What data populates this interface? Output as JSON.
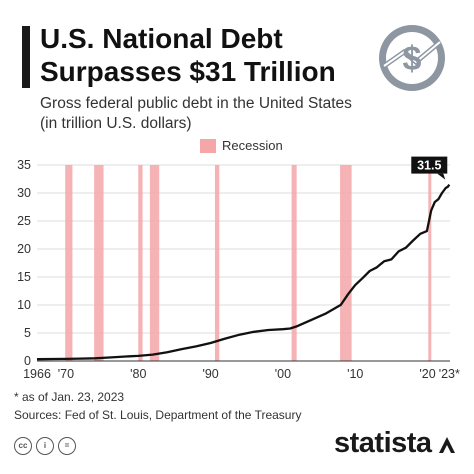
{
  "header": {
    "title_line1": "U.S. National Debt",
    "title_line2": "Surpasses $31 Trillion",
    "subtitle_line1": "Gross federal public debt in the United States",
    "subtitle_line2": "(in trillion U.S. dollars)"
  },
  "badge": {
    "icon": "dollar-coin-icon",
    "glyph": "$"
  },
  "legend": {
    "recession_label": "Recession",
    "recession_color": "#f4a6a8"
  },
  "chart_data": {
    "type": "line",
    "title": "",
    "xlabel": "",
    "ylabel": "",
    "xlim": [
      1966,
      2023.1
    ],
    "ylim": [
      0,
      35
    ],
    "y_ticks": [
      0,
      5,
      10,
      15,
      20,
      25,
      30,
      35
    ],
    "x_tick_labels": [
      {
        "x": 1966,
        "label": "1966"
      },
      {
        "x": 1970,
        "label": "'70"
      },
      {
        "x": 1980,
        "label": "'80"
      },
      {
        "x": 1990,
        "label": "'90"
      },
      {
        "x": 2000,
        "label": "'00"
      },
      {
        "x": 2010,
        "label": "'10"
      },
      {
        "x": 2020,
        "label": "'20"
      },
      {
        "x": 2023,
        "label": "'23*"
      }
    ],
    "grid": true,
    "line_color": "#111111",
    "recessions": [
      [
        1969.9,
        1970.9
      ],
      [
        1973.9,
        1975.2
      ],
      [
        1980.0,
        1980.6
      ],
      [
        1981.6,
        1982.9
      ],
      [
        1990.6,
        1991.2
      ],
      [
        2001.2,
        2001.9
      ],
      [
        2007.9,
        2009.5
      ],
      [
        2020.1,
        2020.4
      ]
    ],
    "end_label": "31.5",
    "series": [
      {
        "x": [
          1966,
          1968,
          1970,
          1972,
          1974,
          1976,
          1978,
          1980,
          1982,
          1984,
          1986,
          1988,
          1990,
          1992,
          1994,
          1996,
          1998,
          2000,
          2001,
          2002,
          2004,
          2006,
          2008,
          2009,
          2010,
          2011,
          2012,
          2013,
          2014,
          2015,
          2016,
          2017,
          2018,
          2019,
          2019.9,
          2020.2,
          2020.5,
          2021,
          2021.5,
          2022,
          2022.5,
          2022.8,
          2023
        ],
        "values": [
          0.32,
          0.35,
          0.38,
          0.43,
          0.48,
          0.62,
          0.78,
          0.91,
          1.14,
          1.57,
          2.13,
          2.6,
          3.21,
          4.0,
          4.69,
          5.22,
          5.53,
          5.67,
          5.81,
          6.23,
          7.38,
          8.51,
          10.02,
          11.91,
          13.56,
          14.79,
          16.07,
          16.74,
          17.82,
          18.15,
          19.57,
          20.24,
          21.52,
          22.72,
          23.2,
          25.0,
          26.9,
          28.4,
          28.9,
          30.0,
          30.9,
          31.1,
          31.5
        ]
      }
    ]
  },
  "footnote": "* as of Jan. 23, 2023",
  "sources": "Sources: Fed of St. Louis, Department of the Treasury",
  "footer": {
    "license_icons": [
      "cc-icon",
      "attribution-icon",
      "no-derivatives-icon"
    ],
    "cc_text": "cc",
    "by_text": "i",
    "nd_text": "=",
    "brand": "statista"
  }
}
